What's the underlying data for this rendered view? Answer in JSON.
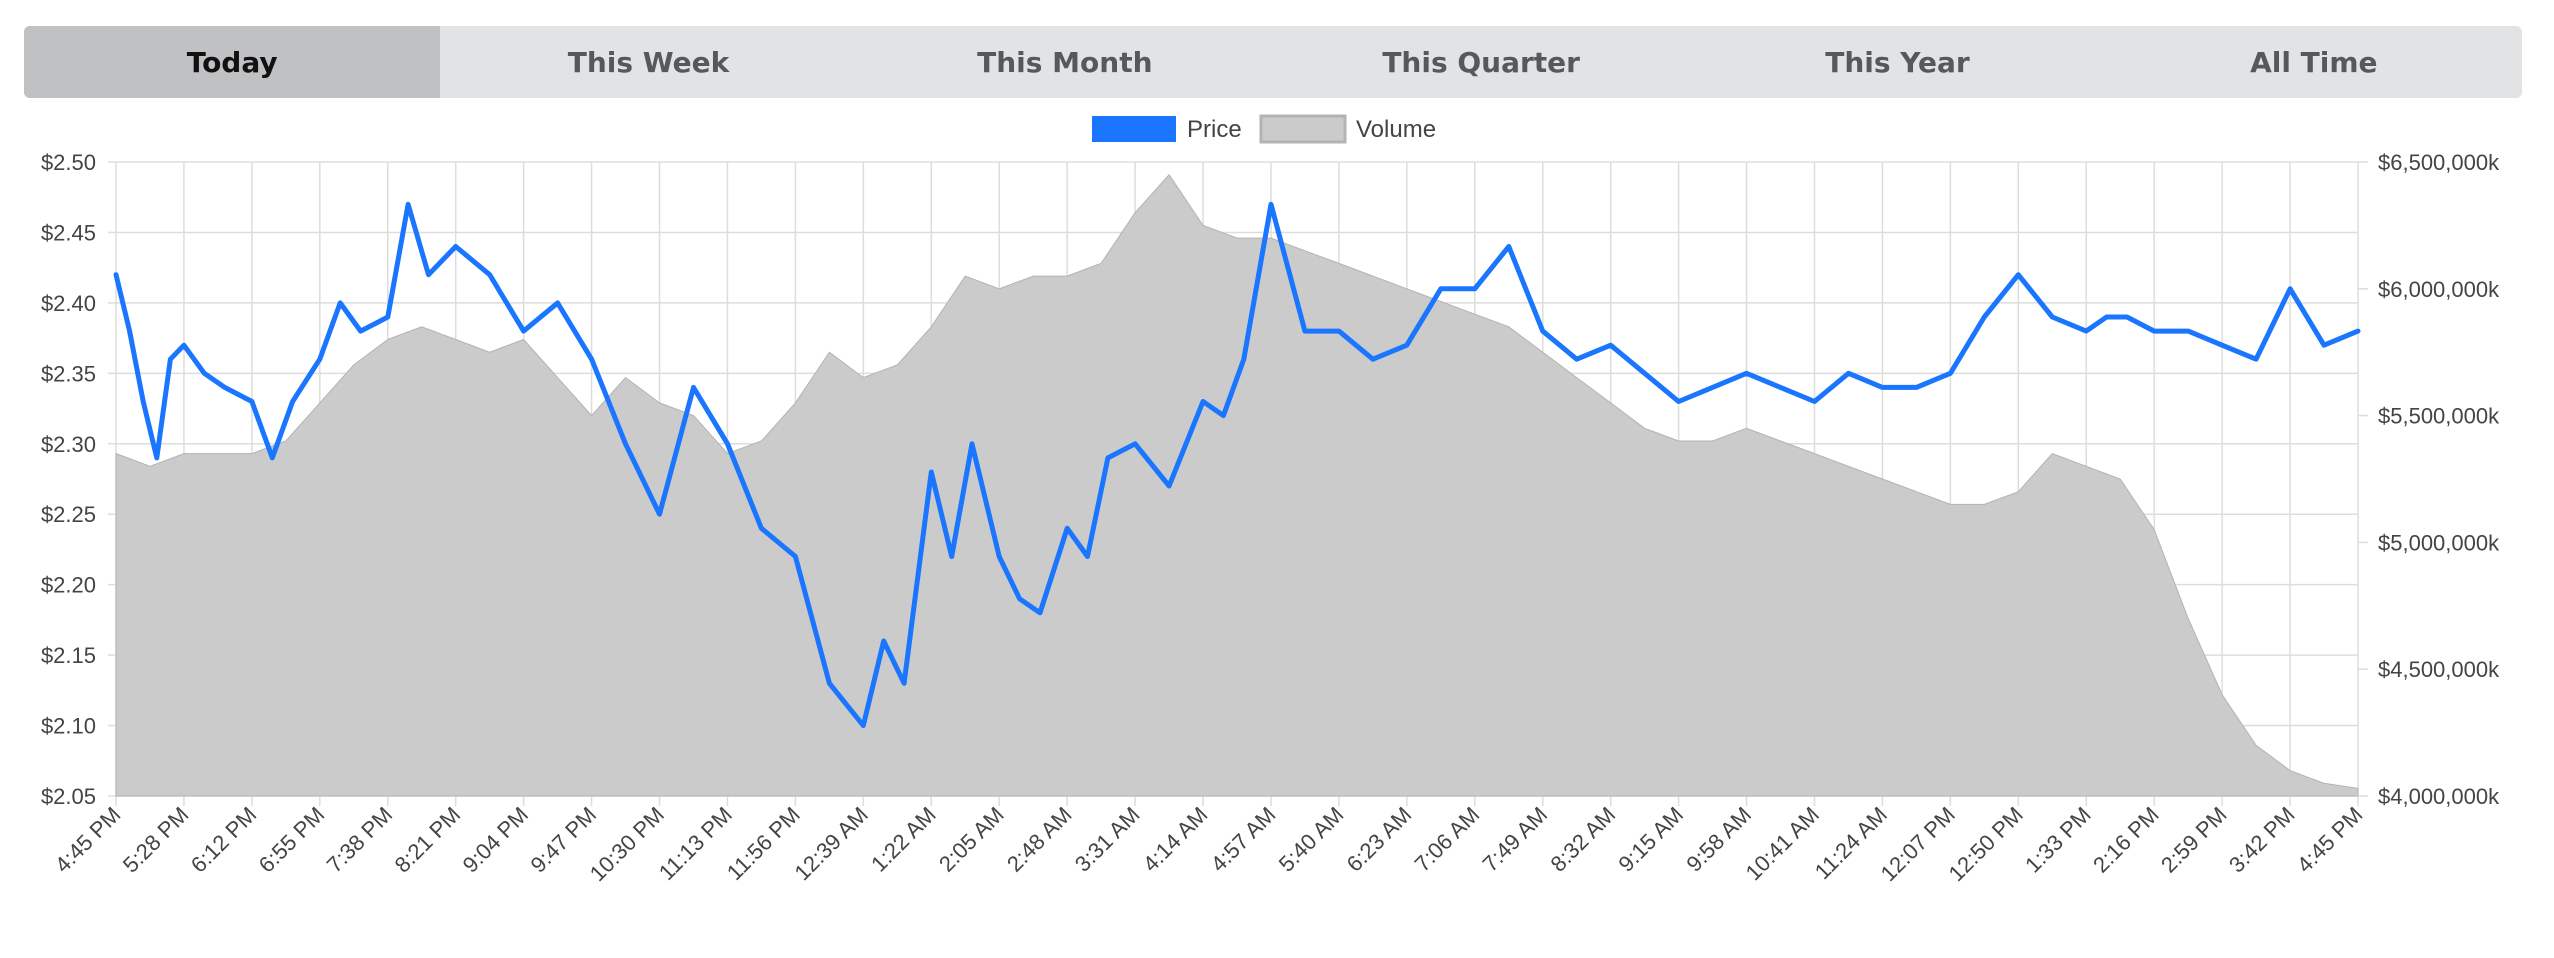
{
  "tabs": [
    {
      "label": "Today",
      "active": true
    },
    {
      "label": "This Week",
      "active": false
    },
    {
      "label": "This Month",
      "active": false
    },
    {
      "label": "This Quarter",
      "active": false
    },
    {
      "label": "This Year",
      "active": false
    },
    {
      "label": "All Time",
      "active": false
    }
  ],
  "colors": {
    "price": "#1a75ff",
    "volume_fill": "#cbcbcb",
    "volume_stroke": "#b3b3b3",
    "grid": "#dddddd"
  },
  "chart_data": {
    "type": "line",
    "title": "",
    "legend": {
      "position": "top-center",
      "entries": [
        "Price",
        "Volume"
      ]
    },
    "grid": true,
    "x_ticks": [
      "4:45 PM",
      "5:28 PM",
      "6:12 PM",
      "6:55 PM",
      "7:38 PM",
      "8:21 PM",
      "9:04 PM",
      "9:47 PM",
      "10:30 PM",
      "11:13 PM",
      "11:56 PM",
      "12:39 AM",
      "1:22 AM",
      "2:05 AM",
      "2:48 AM",
      "3:31 AM",
      "4:14 AM",
      "4:57 AM",
      "5:40 AM",
      "6:23 AM",
      "7:06 AM",
      "7:49 AM",
      "8:32 AM",
      "9:15 AM",
      "9:58 AM",
      "10:41 AM",
      "11:24 AM",
      "12:07 PM",
      "12:50 PM",
      "1:33 PM",
      "2:16 PM",
      "2:59 PM",
      "3:42 PM",
      "4:45 PM"
    ],
    "y_left": {
      "ticks": [
        "$2.50",
        "$2.45",
        "$2.40",
        "$2.35",
        "$2.30",
        "$2.25",
        "$2.20",
        "$2.15",
        "$2.10",
        "$2.05"
      ],
      "lim": [
        2.05,
        2.5
      ]
    },
    "y_right": {
      "ticks": [
        "$6,500,000k",
        "$6,000,000k",
        "$5,500,000k",
        "$5,000,000k",
        "$4,500,000k",
        "$4,000,000k"
      ],
      "lim": [
        4000000,
        6500000
      ]
    },
    "series": [
      {
        "name": "Price",
        "axis": "left",
        "x_index": [
          0,
          0.2,
          0.4,
          0.6,
          0.8,
          1,
          1.3,
          1.6,
          2,
          2.3,
          2.6,
          3,
          3.3,
          3.6,
          4,
          4.3,
          4.6,
          5,
          5.5,
          6,
          6.5,
          7,
          7.5,
          8,
          8.5,
          9,
          9.5,
          10,
          10.5,
          11,
          11.3,
          11.6,
          12,
          12.3,
          12.6,
          13,
          13.3,
          13.6,
          14,
          14.3,
          14.6,
          15,
          15.5,
          16,
          16.3,
          16.6,
          17,
          17.5,
          18,
          18.5,
          19,
          19.5,
          20,
          20.5,
          21,
          21.5,
          22,
          22.5,
          23,
          23.5,
          24,
          24.5,
          25,
          25.5,
          26,
          26.5,
          27,
          27.5,
          28,
          28.5,
          29,
          29.3,
          29.6,
          30,
          30.5,
          31,
          31.5,
          32,
          32.5,
          33
        ],
        "values": [
          2.42,
          2.38,
          2.33,
          2.29,
          2.36,
          2.37,
          2.35,
          2.34,
          2.33,
          2.29,
          2.33,
          2.36,
          2.4,
          2.38,
          2.39,
          2.47,
          2.42,
          2.44,
          2.42,
          2.38,
          2.4,
          2.36,
          2.3,
          2.25,
          2.34,
          2.3,
          2.24,
          2.22,
          2.13,
          2.1,
          2.16,
          2.13,
          2.28,
          2.22,
          2.3,
          2.22,
          2.19,
          2.18,
          2.24,
          2.22,
          2.29,
          2.3,
          2.27,
          2.33,
          2.32,
          2.36,
          2.47,
          2.38,
          2.38,
          2.36,
          2.37,
          2.41,
          2.41,
          2.44,
          2.38,
          2.36,
          2.37,
          2.35,
          2.33,
          2.34,
          2.35,
          2.34,
          2.33,
          2.35,
          2.34,
          2.34,
          2.35,
          2.39,
          2.42,
          2.39,
          2.38,
          2.39,
          2.39,
          2.38,
          2.38,
          2.37,
          2.36,
          2.41,
          2.37,
          2.38
        ]
      },
      {
        "name": "Volume",
        "axis": "right",
        "x_index": [
          0,
          0.5,
          1,
          1.5,
          2,
          2.5,
          3,
          3.5,
          4,
          4.5,
          5,
          5.5,
          6,
          6.5,
          7,
          7.5,
          8,
          8.5,
          9,
          9.5,
          10,
          10.5,
          11,
          11.5,
          12,
          12.5,
          13,
          13.5,
          14,
          14.5,
          15,
          15.5,
          16,
          16.5,
          17,
          17.5,
          18,
          18.5,
          19,
          19.5,
          20,
          20.5,
          21,
          21.5,
          22,
          22.5,
          23,
          23.5,
          24,
          24.5,
          25,
          25.5,
          26,
          26.5,
          27,
          27.5,
          28,
          28.5,
          29,
          29.5,
          30,
          30.5,
          31,
          31.5,
          32,
          32.5,
          33
        ],
        "values": [
          5350000,
          5300000,
          5350000,
          5350000,
          5350000,
          5400000,
          5550000,
          5700000,
          5800000,
          5850000,
          5800000,
          5750000,
          5800000,
          5650000,
          5500000,
          5650000,
          5550000,
          5500000,
          5350000,
          5400000,
          5550000,
          5750000,
          5650000,
          5700000,
          5850000,
          6050000,
          6000000,
          6050000,
          6050000,
          6100000,
          6300000,
          6450000,
          6250000,
          6200000,
          6200000,
          6150000,
          6100000,
          6050000,
          6000000,
          5950000,
          5900000,
          5850000,
          5750000,
          5650000,
          5550000,
          5450000,
          5400000,
          5400000,
          5450000,
          5400000,
          5350000,
          5300000,
          5250000,
          5200000,
          5150000,
          5150000,
          5200000,
          5350000,
          5300000,
          5250000,
          5050000,
          4700000,
          4400000,
          4200000,
          4100000,
          4050000,
          4030000
        ]
      }
    ]
  }
}
